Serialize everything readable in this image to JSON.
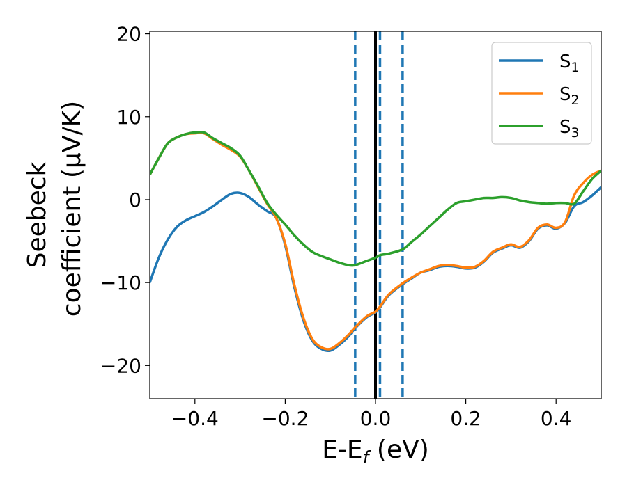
{
  "chart_data": {
    "type": "line",
    "xlabel": "E-E",
    "xlabel_sub": "f",
    "xlabel_unit": " (eV)",
    "ylabel_line1": "Seebeck",
    "ylabel_line2": "coefficient  (μV/K)",
    "xlim": [
      -0.5,
      0.5
    ],
    "ylim": [
      -24,
      20.3
    ],
    "xticks": [
      -0.4,
      -0.2,
      0.0,
      0.2,
      0.4
    ],
    "xtick_labels": [
      "−0.4",
      "−0.2",
      "0.0",
      "0.2",
      "0.4"
    ],
    "yticks": [
      -20,
      -10,
      0,
      10,
      20
    ],
    "ytick_labels": [
      "−20",
      "−10",
      "0",
      "10",
      "20"
    ],
    "grid": false,
    "legend_position": "top-right",
    "vertical_lines": [
      {
        "x": -0.045,
        "style": "dashed",
        "color": "#1f77b4"
      },
      {
        "x": 0.0,
        "style": "solid",
        "color": "#000000"
      },
      {
        "x": 0.01,
        "style": "dashed",
        "color": "#1f77b4"
      },
      {
        "x": 0.06,
        "style": "dashed",
        "color": "#1f77b4"
      }
    ],
    "series": [
      {
        "name": "S",
        "sub": "1",
        "color": "#1f77b4",
        "x": [
          -0.5,
          -0.48,
          -0.46,
          -0.44,
          -0.42,
          -0.4,
          -0.38,
          -0.36,
          -0.34,
          -0.32,
          -0.3,
          -0.28,
          -0.26,
          -0.24,
          -0.22,
          -0.2,
          -0.18,
          -0.16,
          -0.14,
          -0.12,
          -0.1,
          -0.08,
          -0.06,
          -0.045,
          -0.02,
          0.0,
          0.01,
          0.03,
          0.06,
          0.08,
          0.1,
          0.12,
          0.14,
          0.16,
          0.18,
          0.2,
          0.22,
          0.24,
          0.26,
          0.28,
          0.3,
          0.32,
          0.34,
          0.36,
          0.38,
          0.4,
          0.42,
          0.44,
          0.46,
          0.48,
          0.5
        ],
        "y": [
          -10,
          -7,
          -4.8,
          -3.3,
          -2.5,
          -2,
          -1.5,
          -0.8,
          0,
          0.7,
          0.8,
          0.3,
          -0.6,
          -1.4,
          -2.2,
          -5.5,
          -10.5,
          -14.5,
          -17,
          -18,
          -18.2,
          -17.5,
          -16.5,
          -15.5,
          -14.2,
          -13.6,
          -13,
          -11.5,
          -10.2,
          -9.5,
          -8.8,
          -8.5,
          -8.1,
          -8,
          -8.1,
          -8.3,
          -8.2,
          -7.5,
          -6.4,
          -5.9,
          -5.5,
          -5.8,
          -5,
          -3.5,
          -3.1,
          -3.5,
          -2.8,
          -0.8,
          -0.3,
          0.5,
          1.5
        ]
      },
      {
        "name": "S",
        "sub": "2",
        "color": "#ff7f0e",
        "x": [
          -0.5,
          -0.48,
          -0.46,
          -0.44,
          -0.42,
          -0.4,
          -0.38,
          -0.36,
          -0.34,
          -0.32,
          -0.3,
          -0.28,
          -0.26,
          -0.24,
          -0.22,
          -0.2,
          -0.18,
          -0.16,
          -0.14,
          -0.12,
          -0.1,
          -0.08,
          -0.06,
          -0.045,
          -0.02,
          0.0,
          0.01,
          0.03,
          0.06,
          0.08,
          0.1,
          0.12,
          0.14,
          0.16,
          0.18,
          0.2,
          0.22,
          0.24,
          0.26,
          0.28,
          0.3,
          0.32,
          0.34,
          0.36,
          0.38,
          0.4,
          0.42,
          0.44,
          0.46,
          0.48,
          0.5
        ],
        "y": [
          3,
          5,
          6.8,
          7.5,
          7.9,
          8,
          8,
          7.3,
          6.6,
          6,
          5.2,
          3.5,
          1.5,
          -0.5,
          -2.2,
          -5.3,
          -10.2,
          -14.2,
          -16.8,
          -17.8,
          -18,
          -17.3,
          -16.3,
          -15.4,
          -14.1,
          -13.5,
          -12.9,
          -11.4,
          -10.1,
          -9.4,
          -8.8,
          -8.4,
          -8,
          -7.9,
          -8,
          -8.2,
          -8.1,
          -7.4,
          -6.3,
          -5.8,
          -5.4,
          -5.7,
          -4.9,
          -3.4,
          -3,
          -3.4,
          -2.7,
          0.5,
          2,
          3,
          3.5
        ]
      },
      {
        "name": "S",
        "sub": "3",
        "color": "#2ca02c",
        "x": [
          -0.5,
          -0.48,
          -0.46,
          -0.44,
          -0.42,
          -0.4,
          -0.38,
          -0.36,
          -0.34,
          -0.32,
          -0.3,
          -0.28,
          -0.26,
          -0.24,
          -0.22,
          -0.2,
          -0.18,
          -0.16,
          -0.14,
          -0.12,
          -0.1,
          -0.08,
          -0.06,
          -0.045,
          -0.02,
          0.0,
          0.01,
          0.03,
          0.06,
          0.08,
          0.1,
          0.12,
          0.14,
          0.16,
          0.18,
          0.2,
          0.22,
          0.24,
          0.26,
          0.28,
          0.3,
          0.32,
          0.34,
          0.36,
          0.38,
          0.4,
          0.42,
          0.44,
          0.46,
          0.48,
          0.5
        ],
        "y": [
          3,
          5,
          6.8,
          7.5,
          7.9,
          8.1,
          8.1,
          7.4,
          6.8,
          6.2,
          5.3,
          3.5,
          1.6,
          -0.4,
          -1.8,
          -3,
          -4.3,
          -5.4,
          -6.3,
          -6.8,
          -7.2,
          -7.6,
          -7.9,
          -7.9,
          -7.4,
          -7,
          -6.7,
          -6.5,
          -6,
          -5.1,
          -4.2,
          -3.2,
          -2.2,
          -1.2,
          -0.4,
          -0.2,
          0,
          0.2,
          0.2,
          0.3,
          0.2,
          -0.1,
          -0.3,
          -0.4,
          -0.5,
          -0.4,
          -0.4,
          -0.5,
          1,
          2.5,
          3.5
        ]
      }
    ]
  }
}
